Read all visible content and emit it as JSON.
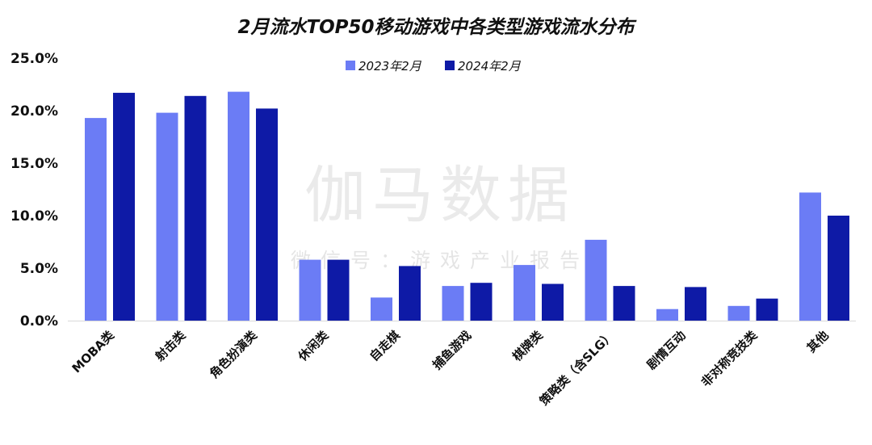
{
  "watermark": {
    "main": "伽马数据",
    "sub": "微信号：游戏产业报告"
  },
  "chart_data": {
    "type": "bar",
    "title": "2月流水TOP50移动游戏中各类型游戏流水分布",
    "xlabel": "",
    "ylabel": "",
    "ylim": [
      0,
      25
    ],
    "y_ticks": [
      "0.0%",
      "5.0%",
      "10.0%",
      "15.0%",
      "20.0%",
      "25.0%"
    ],
    "y_tick_values": [
      0,
      5,
      10,
      15,
      20,
      25
    ],
    "grid": false,
    "legend_position": "top-center",
    "categories": [
      "MOBA类",
      "射击类",
      "角色扮演类",
      "休闲类",
      "自走棋",
      "捕鱼游戏",
      "棋牌类",
      "策略类（含SLG）",
      "剧情互动",
      "非对称竞技类",
      "其他"
    ],
    "series": [
      {
        "name": "2023年2月",
        "color": "#6b7cf5",
        "values": [
          19.3,
          19.8,
          21.8,
          5.8,
          2.2,
          3.3,
          5.3,
          7.7,
          1.1,
          1.4,
          12.2
        ]
      },
      {
        "name": "2024年2月",
        "color": "#0e1aa6",
        "values": [
          21.7,
          21.4,
          20.2,
          5.8,
          5.2,
          3.6,
          3.5,
          3.3,
          3.2,
          2.1,
          10.0
        ]
      }
    ]
  }
}
